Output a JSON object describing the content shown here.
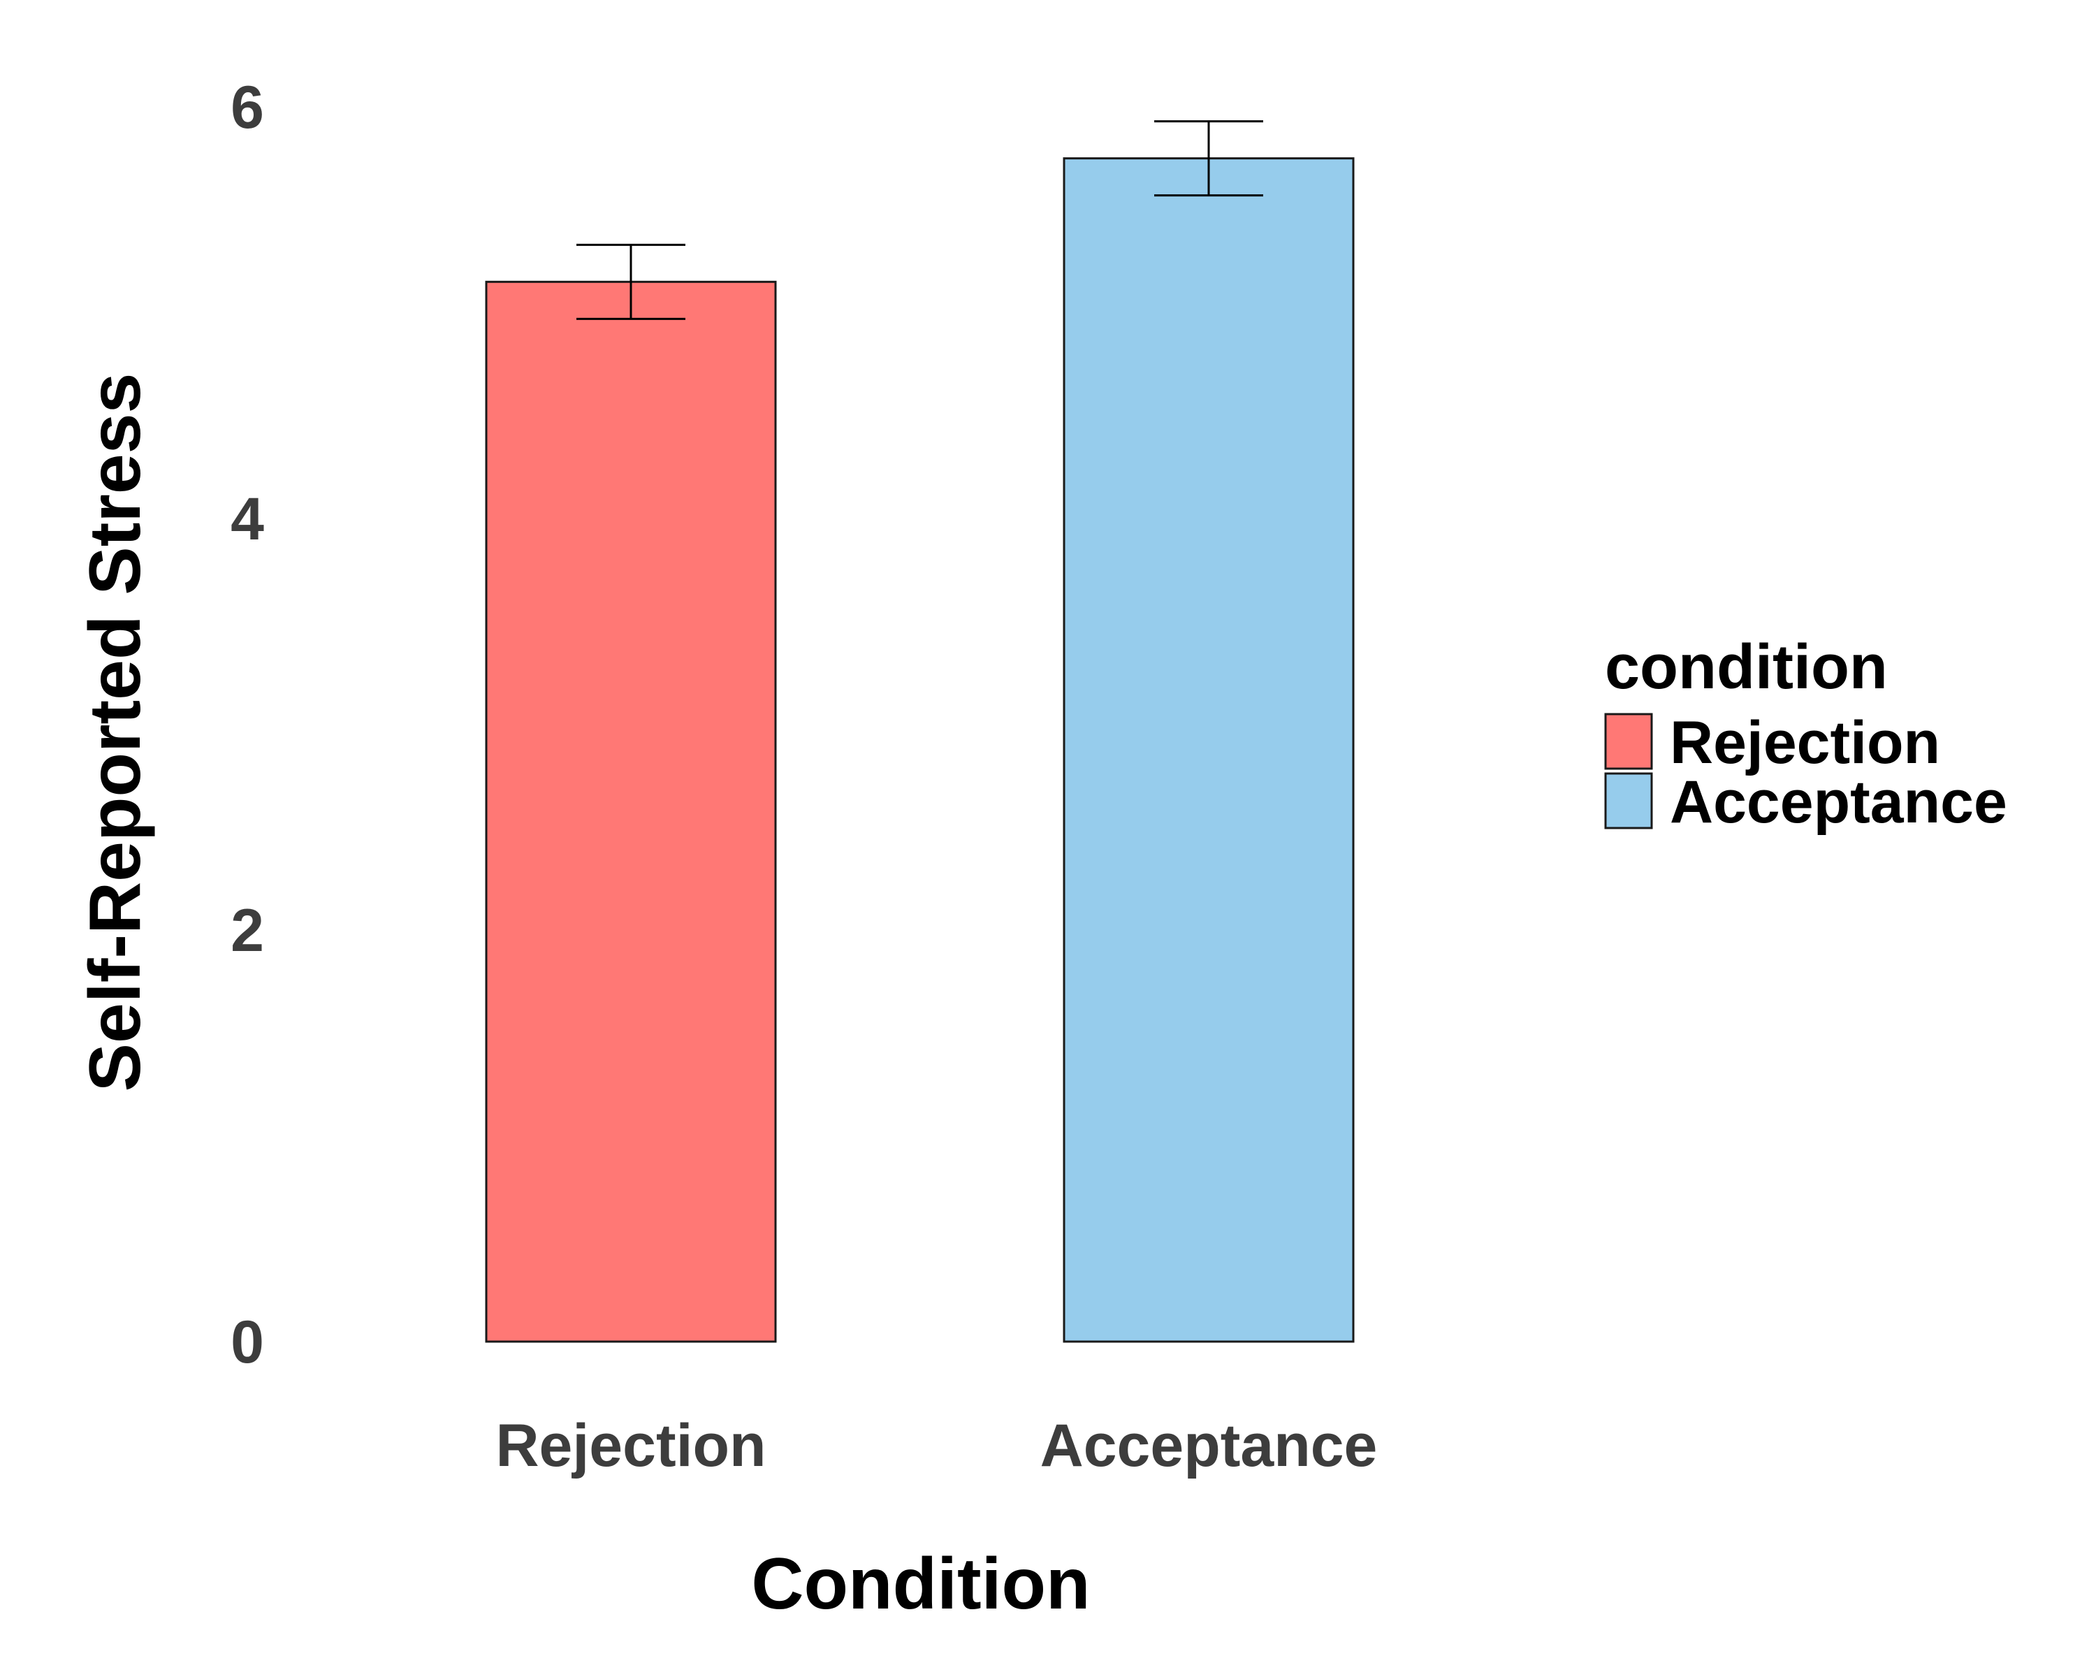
{
  "chart_data": {
    "type": "bar",
    "categories": [
      "Rejection",
      "Acceptance"
    ],
    "values": [
      5.15,
      5.75
    ],
    "error": [
      0.18,
      0.18
    ],
    "colors": [
      "#FF7875",
      "#96CCEC"
    ],
    "xlabel": "Condition",
    "ylabel": "Self-Reported Stress",
    "ylim": [
      0,
      6
    ],
    "yticks": [
      "0",
      "2",
      "4",
      "6"
    ],
    "grid": false,
    "legend": {
      "title": "condition",
      "position": "right",
      "entries": [
        "Rejection",
        "Acceptance"
      ]
    }
  }
}
